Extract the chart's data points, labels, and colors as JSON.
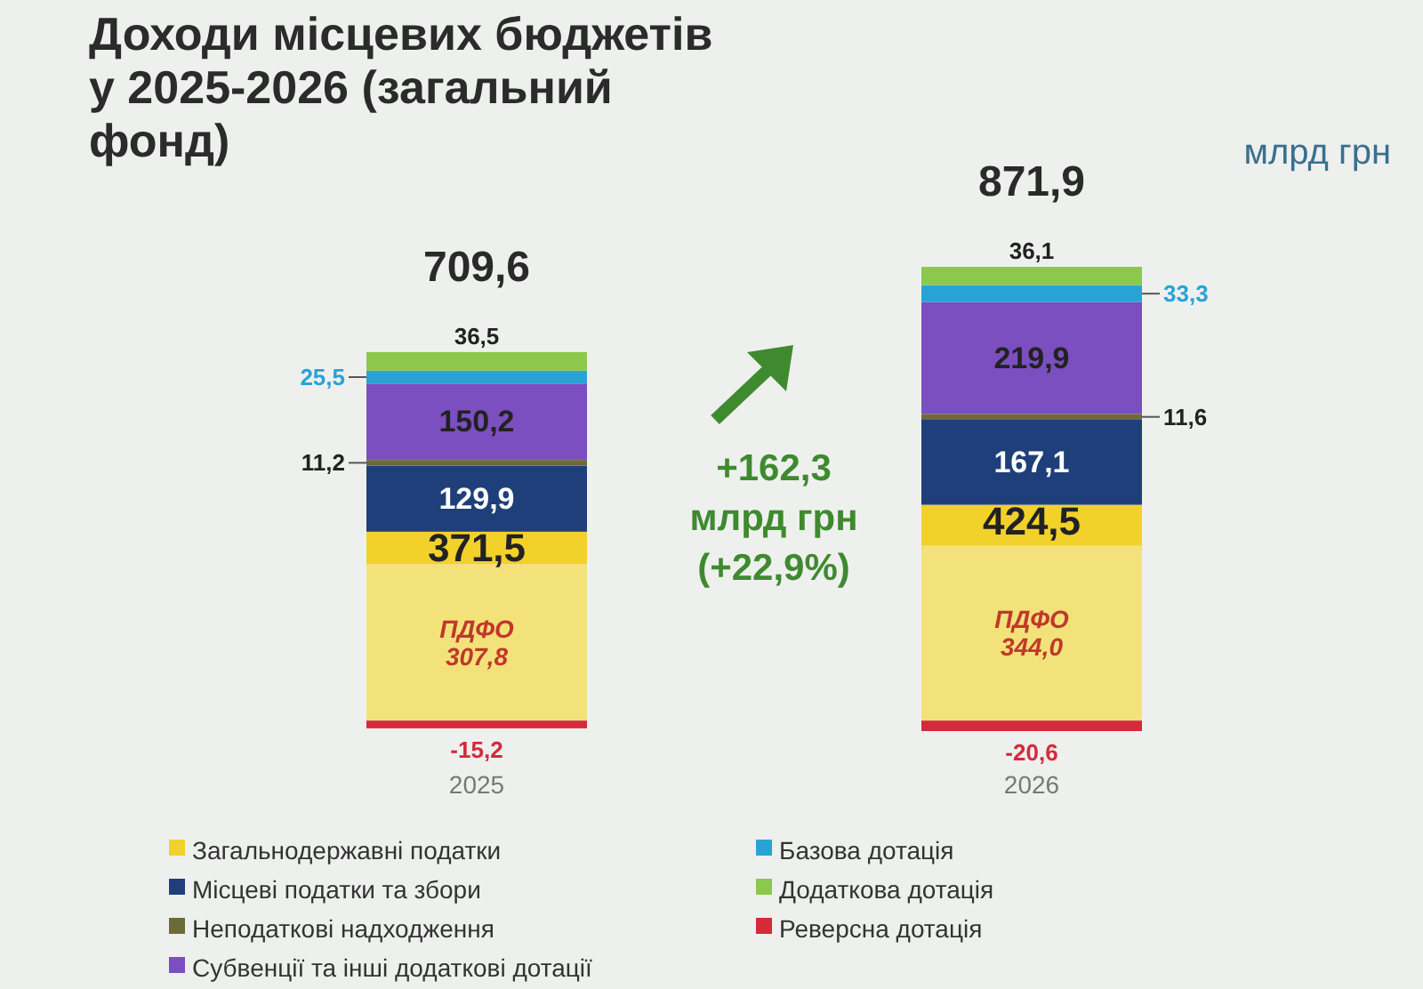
{
  "chart_data": {
    "type": "bar",
    "stacked": true,
    "title": "Доходи місцевих бюджетів у 2025-2026 (загальний фонд)",
    "categories": [
      "2025",
      "2026"
    ],
    "series": [
      {
        "color": "#f3e27a",
        "values": [
          307.8,
          344.0
        ],
        "value_labels": [
          "ПДФО\n307,8",
          "ПДФО\n344,0"
        ]
      },
      {
        "name": "Загальнодержавні податки",
        "color": "#f2d12a",
        "values": [
          63.7,
          80.5
        ]
      },
      {
        "name": "Місцеві податки та збори",
        "color": "#1f3f7a",
        "values": [
          129.9,
          167.1
        ],
        "value_labels": [
          "129,9",
          "167,1"
        ]
      },
      {
        "name": "Неподаткові надходження",
        "color": "#6b6b3a",
        "values": [
          11.2,
          11.6
        ],
        "value_labels": [
          "11,2",
          "11,6"
        ]
      },
      {
        "name": "Субвенції та інші додаткові дотації",
        "color": "#7b4fbf",
        "values": [
          150.2,
          219.9
        ],
        "value_labels": [
          "150,2",
          "219,9"
        ]
      },
      {
        "name": "Базова дотація",
        "color": "#29a3d6",
        "values": [
          25.5,
          33.3
        ],
        "value_labels": [
          "25,5",
          "33,3"
        ]
      },
      {
        "name": "Додаткова дотація",
        "color": "#8cc84b",
        "values": [
          36.5,
          36.1
        ],
        "value_labels": [
          "36,5",
          "36,1"
        ]
      },
      {
        "name": "Реверсна дотація",
        "color": "#d42a3a",
        "values": [
          -15.2,
          -20.6
        ],
        "value_labels": [
          "-15,2",
          "-20,6"
        ]
      }
    ],
    "totals": [
      "709,6",
      "871,9"
    ],
    "tick_labels": "x",
    "legend": "bottom",
    "annotations": [
      "млрд грн",
      "+162,3\nмлрд грн\n(+22,9%)",
      {
        "text": "371,5",
        "x": "2025",
        "y": 371.5
      },
      {
        "text": "424,5",
        "x": "2026",
        "y": 424.5
      }
    ]
  }
}
